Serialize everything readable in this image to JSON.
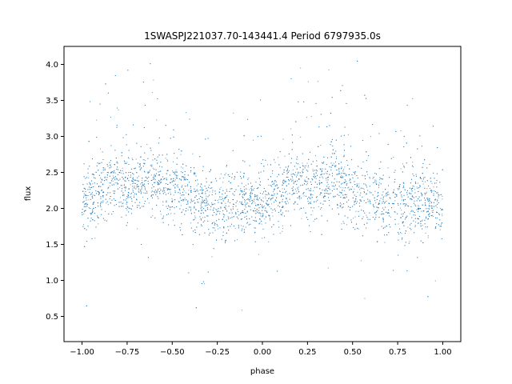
{
  "chart_data": {
    "type": "scatter",
    "title": "1SWASPJ221037.70-143441.4 Period 6797935.0s",
    "xlabel": "phase",
    "ylabel": "flux",
    "xlim": [
      -1.1,
      1.1
    ],
    "ylim": [
      0.15,
      4.25
    ],
    "xticks": [
      -1.0,
      -0.75,
      -0.5,
      -0.25,
      0.0,
      0.25,
      0.5,
      0.75,
      1.0
    ],
    "xtick_labels": [
      "−1.00",
      "−0.75",
      "−0.50",
      "−0.25",
      "0.00",
      "0.25",
      "0.50",
      "0.75",
      "1.00"
    ],
    "yticks": [
      0.5,
      1.0,
      1.5,
      2.0,
      2.5,
      3.0,
      3.5,
      4.0
    ],
    "ytick_labels": [
      "0.5",
      "1.0",
      "1.5",
      "2.0",
      "2.5",
      "3.0",
      "3.5",
      "4.0"
    ],
    "grid": false,
    "series": [
      {
        "color": "#1f77b4",
        "phase_range": [
          -1.0,
          1.0
        ],
        "profile": {
          "phase": [
            0.0,
            0.05,
            0.1,
            0.15,
            0.2,
            0.25,
            0.3,
            0.35,
            0.4,
            0.45,
            0.5,
            0.55,
            0.6,
            0.65,
            0.7,
            0.75,
            0.8,
            0.85,
            0.9,
            0.95,
            1.0
          ],
          "median_flux": [
            2.05,
            2.1,
            2.2,
            2.35,
            2.4,
            2.25,
            2.3,
            2.35,
            2.4,
            2.3,
            2.2,
            2.25,
            2.2,
            2.1,
            2.0,
            2.05,
            2.0,
            2.05,
            2.1,
            2.1,
            2.05
          ]
        }
      }
    ]
  }
}
